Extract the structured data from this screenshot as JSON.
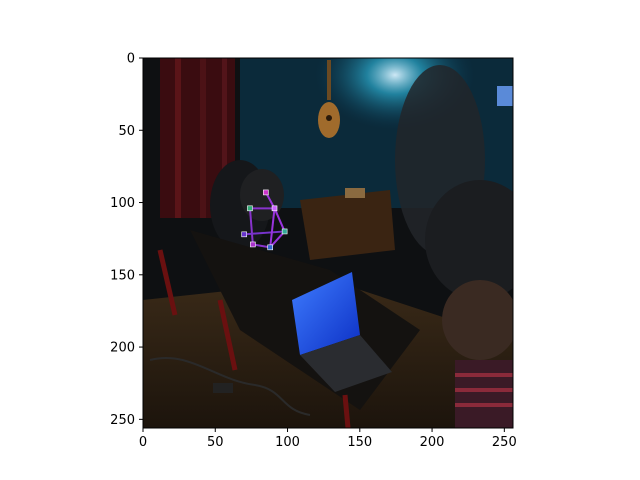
{
  "chart_data": {
    "type": "scatter",
    "title": "",
    "xlabel": "",
    "ylabel": "",
    "xlim": [
      0,
      256
    ],
    "ylim": [
      256,
      0
    ],
    "x_ticks": [
      0,
      50,
      100,
      150,
      200,
      250
    ],
    "y_ticks": [
      0,
      50,
      100,
      150,
      200,
      250
    ],
    "x_tick_labels": [
      "0",
      "50",
      "100",
      "150",
      "200",
      "250"
    ],
    "y_tick_labels": [
      "0",
      "50",
      "100",
      "150",
      "200",
      "250"
    ],
    "grid": false,
    "background_image": "dim room photo: people at laptops, glowing blue laptop screen, guitar on wall",
    "keypoints": [
      {
        "x": 85,
        "y": 93,
        "color": "#cc33cc"
      },
      {
        "x": 74,
        "y": 104,
        "color": "#33aa77"
      },
      {
        "x": 91,
        "y": 104,
        "color": "#cc66ff"
      },
      {
        "x": 98,
        "y": 120,
        "color": "#33aa99"
      },
      {
        "x": 70,
        "y": 122,
        "color": "#6633cc"
      },
      {
        "x": 76,
        "y": 129,
        "color": "#aa33cc"
      },
      {
        "x": 88,
        "y": 131,
        "color": "#3366cc"
      }
    ],
    "skeleton": [
      {
        "from": 0,
        "to": 2,
        "color": "#9933dd"
      },
      {
        "from": 1,
        "to": 2,
        "color": "#8833cc"
      },
      {
        "from": 2,
        "to": 3,
        "color": "#9933dd"
      },
      {
        "from": 3,
        "to": 6,
        "color": "#9933dd"
      },
      {
        "from": 1,
        "to": 5,
        "color": "#8833cc"
      },
      {
        "from": 5,
        "to": 6,
        "color": "#8833cc"
      },
      {
        "from": 4,
        "to": 3,
        "color": "#7733cc"
      },
      {
        "from": 2,
        "to": 6,
        "color": "#9933dd"
      }
    ]
  }
}
